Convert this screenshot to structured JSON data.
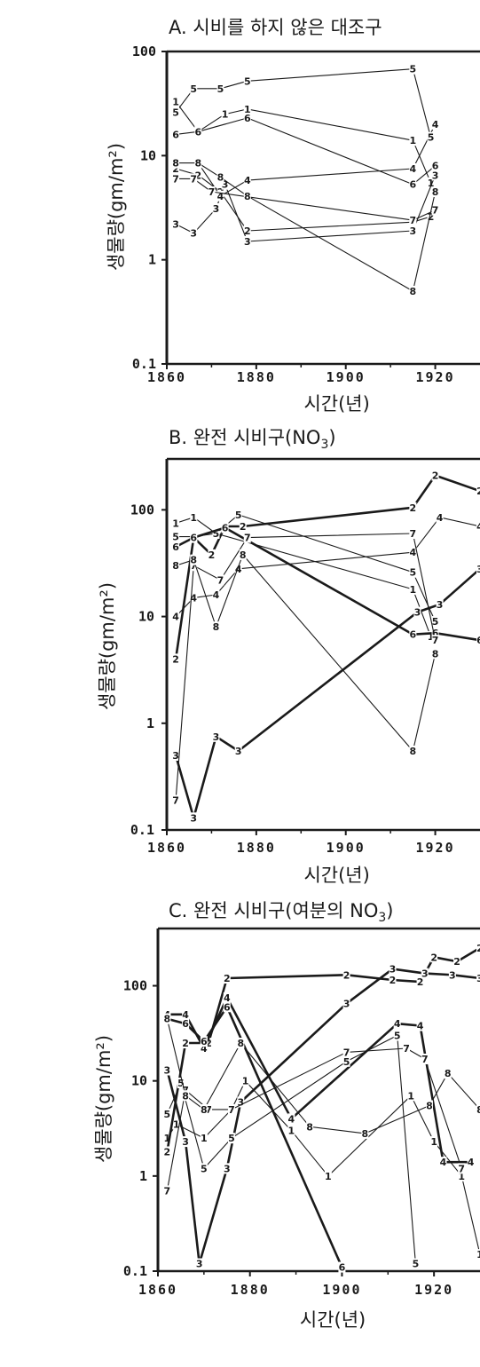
{
  "chart_data": [
    {
      "type": "line",
      "panel": "A",
      "title": "A. 시비를 하지 않은 대조구",
      "xlabel": "시간(년)",
      "ylabel": "생물량(gm/m²)",
      "scale_y": "log",
      "xlim": [
        1860,
        1930
      ],
      "ylim": [
        0.1,
        100
      ],
      "x_ticks": [
        "1860",
        "1880",
        "1900",
        "1920"
      ],
      "y_ticks": [
        {
          "value": 100,
          "label": "100"
        },
        {
          "value": 10,
          "label": "10"
        },
        {
          "value": 1,
          "label": "1"
        },
        {
          "value": 0.1,
          "label": "0.1"
        }
      ],
      "series": [
        {
          "name": "1",
          "bold": false,
          "points": [
            [
              1862,
              33
            ],
            [
              1867,
              17
            ],
            [
              1873,
              25
            ],
            [
              1878,
              28
            ],
            [
              1915,
              14
            ],
            [
              1919,
              5.5
            ]
          ]
        },
        {
          "name": "2",
          "bold": false,
          "points": [
            [
              1862,
              7.5
            ],
            [
              1867,
              6.5
            ],
            [
              1872,
              4.5
            ],
            [
              1878,
              1.9
            ],
            [
              1915,
              2.3
            ],
            [
              1919,
              2.6
            ]
          ]
        },
        {
          "name": "3",
          "bold": false,
          "points": [
            [
              1862,
              2.2
            ],
            [
              1866,
              1.8
            ],
            [
              1871,
              3.1
            ],
            [
              1873,
              5.3
            ],
            [
              1878,
              1.5
            ],
            [
              1915,
              1.9
            ],
            [
              1920,
              6.5
            ]
          ]
        },
        {
          "name": "4",
          "bold": false,
          "points": [
            [
              1867,
              8.5
            ],
            [
              1872,
              4.1
            ],
            [
              1878,
              5.8
            ],
            [
              1915,
              7.5
            ],
            [
              1920,
              20
            ]
          ]
        },
        {
          "name": "5",
          "bold": false,
          "points": [
            [
              1862,
              26
            ],
            [
              1866,
              44
            ],
            [
              1872,
              44
            ],
            [
              1878,
              52
            ],
            [
              1915,
              68
            ],
            [
              1919,
              15
            ]
          ]
        },
        {
          "name": "6",
          "bold": false,
          "points": [
            [
              1862,
              16
            ],
            [
              1867,
              17
            ],
            [
              1878,
              23
            ],
            [
              1915,
              5.3
            ],
            [
              1920,
              8
            ]
          ]
        },
        {
          "name": "7",
          "bold": false,
          "points": [
            [
              1862,
              6
            ],
            [
              1866,
              6
            ],
            [
              1870,
              4.5
            ],
            [
              1915,
              2.4
            ],
            [
              1920,
              3
            ]
          ]
        },
        {
          "name": "8",
          "bold": false,
          "points": [
            [
              1862,
              8.5
            ],
            [
              1867,
              8.5
            ],
            [
              1872,
              6.2
            ],
            [
              1878,
              4.1
            ],
            [
              1915,
              0.5
            ],
            [
              1920,
              4.5
            ]
          ]
        }
      ]
    },
    {
      "type": "line",
      "panel": "B",
      "title": "B. 완전 시비구(NO",
      "title_sub": "3",
      "title_tail": ")",
      "xlabel": "시간(년)",
      "ylabel": "생물량(gm/m²)",
      "scale_y": "log",
      "xlim": [
        1860,
        1930
      ],
      "ylim": [
        0.1,
        300
      ],
      "x_ticks": [
        "1860",
        "1880",
        "1900",
        "1920"
      ],
      "y_ticks": [
        {
          "value": 100,
          "label": "100"
        },
        {
          "value": 10,
          "label": "10"
        },
        {
          "value": 1,
          "label": "1"
        },
        {
          "value": 0.1,
          "label": "0.1"
        }
      ],
      "series": [
        {
          "name": "1",
          "bold": false,
          "points": [
            [
              1862,
              75
            ],
            [
              1866,
              85
            ],
            [
              1871,
              60
            ],
            [
              1915,
              18
            ],
            [
              1919,
              6.5
            ]
          ]
        },
        {
          "name": "2",
          "bold": true,
          "points": [
            [
              1862,
              4
            ],
            [
              1866,
              55
            ],
            [
              1870,
              38
            ],
            [
              1873,
              70
            ],
            [
              1877,
              70
            ],
            [
              1915,
              105
            ],
            [
              1920,
              210
            ],
            [
              1930,
              150
            ]
          ]
        },
        {
          "name": "3",
          "bold": true,
          "points": [
            [
              1862,
              0.5
            ],
            [
              1866,
              0.13
            ],
            [
              1871,
              0.75
            ],
            [
              1876,
              0.55
            ],
            [
              1916,
              11
            ],
            [
              1921,
              13
            ],
            [
              1930,
              28
            ]
          ]
        },
        {
          "name": "4",
          "bold": false,
          "points": [
            [
              1862,
              10
            ],
            [
              1866,
              15
            ],
            [
              1871,
              16
            ],
            [
              1876,
              28
            ],
            [
              1915,
              40
            ],
            [
              1921,
              85
            ],
            [
              1930,
              70
            ]
          ]
        },
        {
          "name": "5",
          "bold": false,
          "points": [
            [
              1862,
              56
            ],
            [
              1866,
              56
            ],
            [
              1871,
              60
            ],
            [
              1876,
              90
            ],
            [
              1915,
              26
            ],
            [
              1920,
              9
            ]
          ]
        },
        {
          "name": "6",
          "bold": true,
          "points": [
            [
              1862,
              45
            ],
            [
              1866,
              55
            ],
            [
              1873,
              68
            ],
            [
              1915,
              6.8
            ],
            [
              1920,
              7
            ],
            [
              1930,
              6
            ]
          ]
        },
        {
          "name": "7",
          "bold": false,
          "points": [
            [
              1862,
              0.19
            ],
            [
              1866,
              30
            ],
            [
              1872,
              22
            ],
            [
              1878,
              55
            ],
            [
              1915,
              60
            ],
            [
              1920,
              6
            ]
          ]
        },
        {
          "name": "8",
          "bold": false,
          "points": [
            [
              1862,
              30
            ],
            [
              1866,
              34
            ],
            [
              1871,
              8
            ],
            [
              1877,
              38
            ],
            [
              1915,
              0.55
            ],
            [
              1920,
              4.5
            ]
          ]
        }
      ]
    },
    {
      "type": "line",
      "panel": "C",
      "title": "C. 완전 시비구(여분의 NO",
      "title_sub": "3",
      "title_tail": ")",
      "xlabel": "시간(년)",
      "ylabel": "생물량(gm/m²)",
      "scale_y": "log",
      "xlim": [
        1860,
        1930
      ],
      "ylim": [
        0.1,
        400
      ],
      "x_ticks": [
        "1860",
        "1880",
        "1900",
        "1920"
      ],
      "y_ticks": [
        {
          "value": 100,
          "label": "100"
        },
        {
          "value": 10,
          "label": "10"
        },
        {
          "value": 1,
          "label": "1"
        },
        {
          "value": 0.1,
          "label": "0.1"
        }
      ],
      "series": [
        {
          "name": "1",
          "bold": false,
          "points": [
            [
              1862,
              2.5
            ],
            [
              1864,
              3.5
            ],
            [
              1870,
              2.5
            ],
            [
              1876,
              5
            ],
            [
              1879,
              10
            ],
            [
              1889,
              3
            ],
            [
              1897,
              1
            ],
            [
              1915,
              7
            ],
            [
              1920,
              2.3
            ],
            [
              1926,
              1
            ],
            [
              1930,
              0.15
            ]
          ]
        },
        {
          "name": "2",
          "bold": true,
          "points": [
            [
              1862,
              1.8
            ],
            [
              1866,
              25
            ],
            [
              1871,
              25
            ],
            [
              1875,
              120
            ],
            [
              1901,
              130
            ],
            [
              1911,
              115
            ],
            [
              1917,
              110
            ],
            [
              1920,
              200
            ],
            [
              1925,
              180
            ],
            [
              1930,
              250
            ]
          ]
        },
        {
          "name": "3",
          "bold": true,
          "points": [
            [
              1862,
              13
            ],
            [
              1866,
              2.3
            ],
            [
              1869,
              0.12
            ],
            [
              1875,
              1.2
            ],
            [
              1878,
              6
            ],
            [
              1901,
              65
            ],
            [
              1911,
              150
            ],
            [
              1918,
              135
            ],
            [
              1924,
              130
            ],
            [
              1930,
              120
            ]
          ]
        },
        {
          "name": "4",
          "bold": true,
          "points": [
            [
              1862,
              50
            ],
            [
              1866,
              50
            ],
            [
              1870,
              22
            ],
            [
              1875,
              75
            ],
            [
              1889,
              4
            ],
            [
              1912,
              40
            ],
            [
              1917,
              38
            ],
            [
              1922,
              1.4
            ],
            [
              1928,
              1.4
            ]
          ]
        },
        {
          "name": "5",
          "bold": false,
          "points": [
            [
              1862,
              4.5
            ],
            [
              1865,
              9.5
            ],
            [
              1870,
              1.2
            ],
            [
              1876,
              2.5
            ],
            [
              1901,
              16
            ],
            [
              1912,
              30
            ],
            [
              1916,
              0.12
            ]
          ]
        },
        {
          "name": "6",
          "bold": true,
          "points": [
            [
              1862,
              45
            ],
            [
              1866,
              40
            ],
            [
              1870,
              26
            ],
            [
              1875,
              60
            ],
            [
              1900,
              0.11
            ]
          ]
        },
        {
          "name": "7",
          "bold": false,
          "points": [
            [
              1862,
              0.7
            ],
            [
              1866,
              8
            ],
            [
              1871,
              5
            ],
            [
              1876,
              5
            ],
            [
              1901,
              20
            ],
            [
              1914,
              22
            ],
            [
              1918,
              17
            ],
            [
              1926,
              1.2
            ]
          ]
        },
        {
          "name": "8",
          "bold": false,
          "points": [
            [
              1862,
              45
            ],
            [
              1866,
              7
            ],
            [
              1870,
              5
            ],
            [
              1878,
              25
            ],
            [
              1893,
              3.3
            ],
            [
              1905,
              2.8
            ],
            [
              1919,
              5.5
            ],
            [
              1923,
              12
            ],
            [
              1930,
              5
            ]
          ]
        }
      ]
    }
  ]
}
